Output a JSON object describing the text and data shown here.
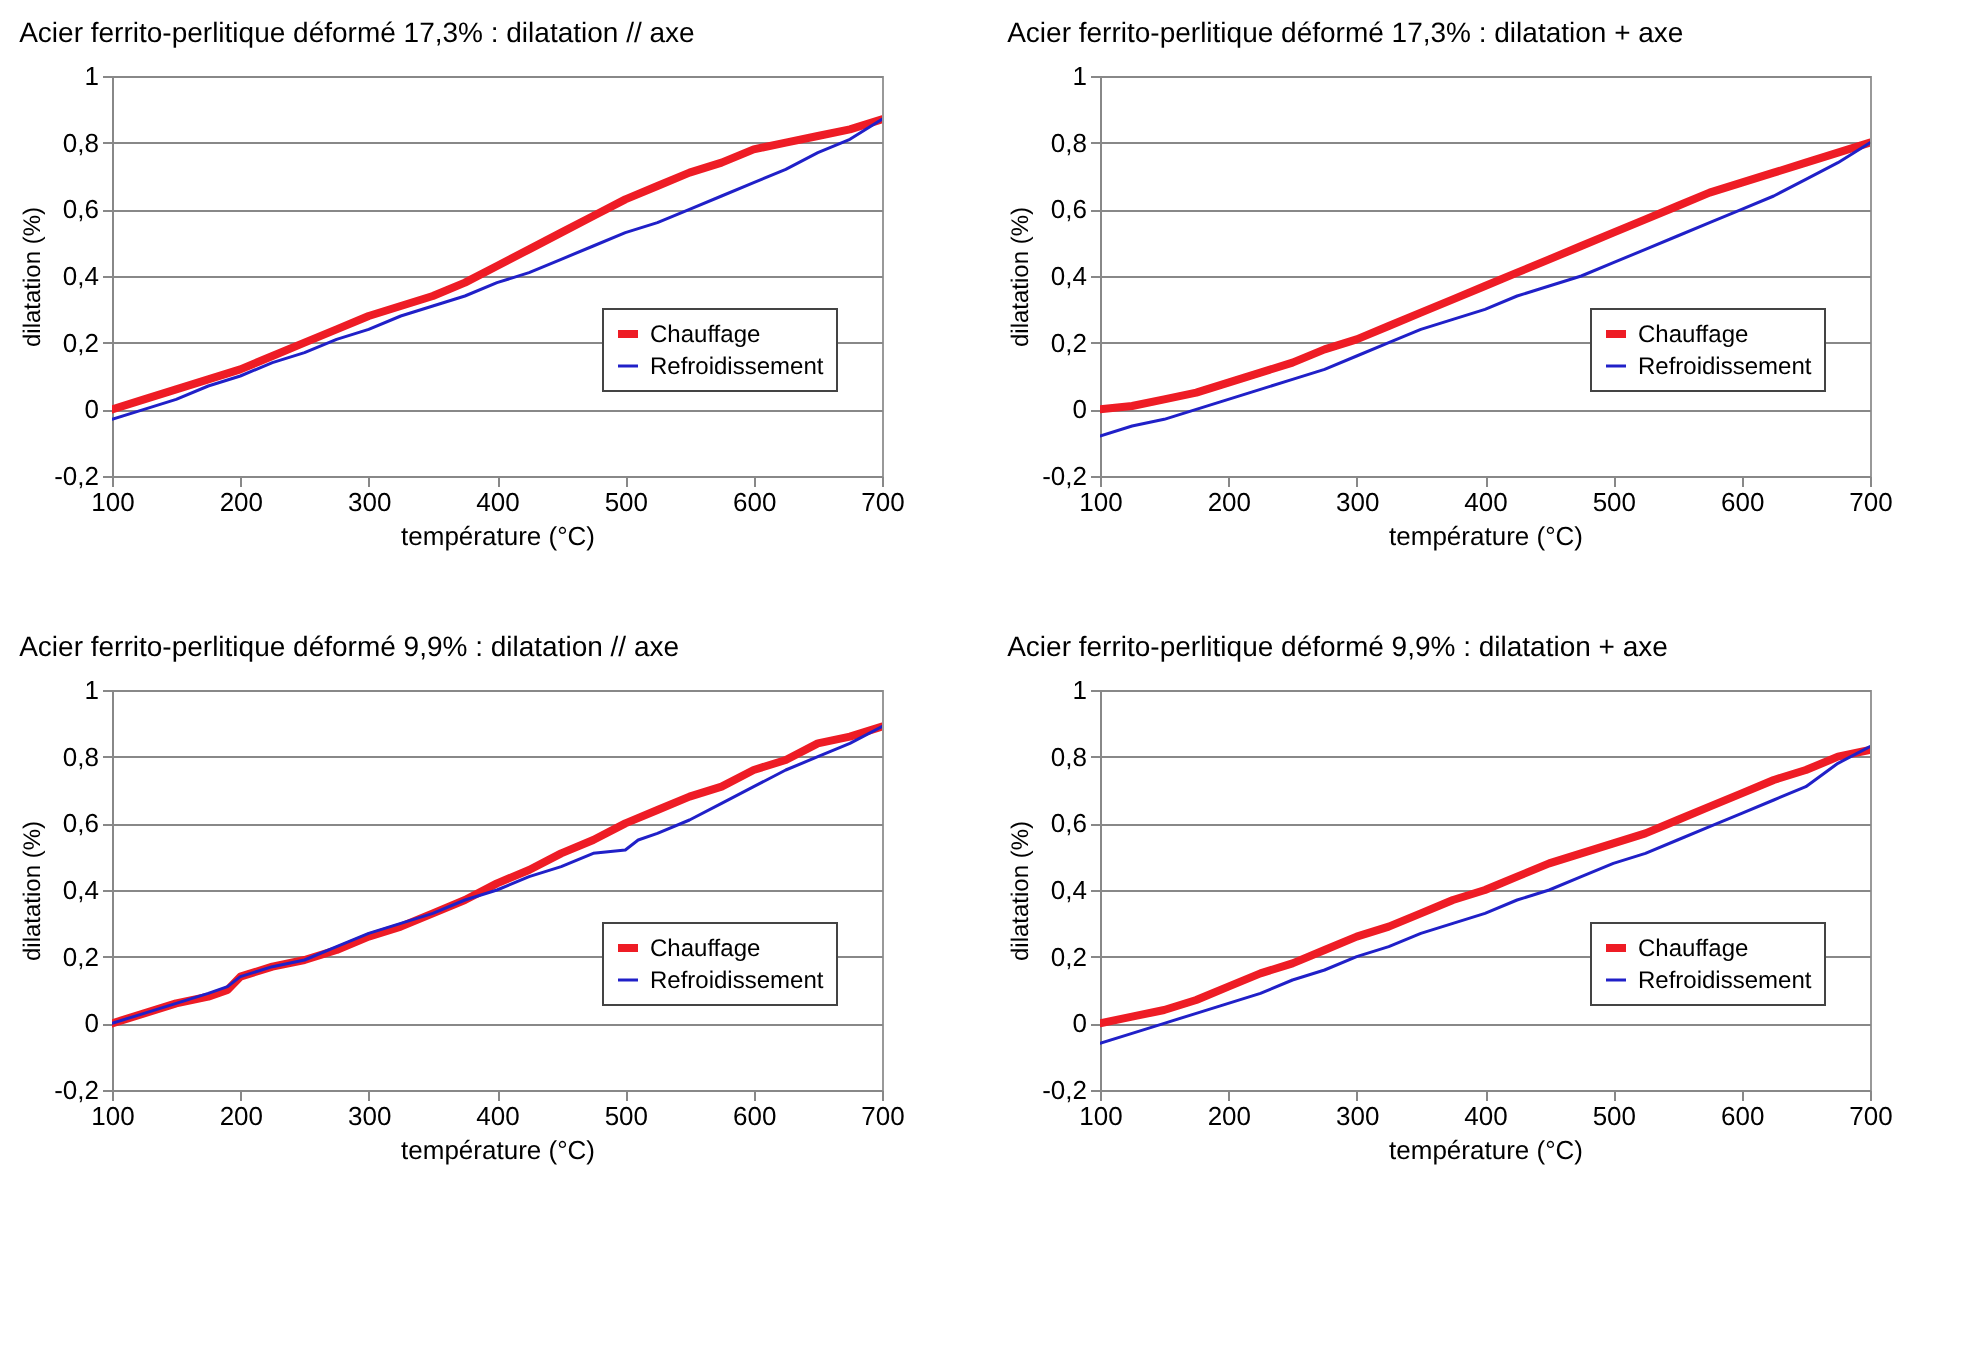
{
  "chart_data": [
    {
      "type": "line",
      "title": "Acier ferrito-perlitique déformé 17,3% : dilatation // axe",
      "xlabel": "température (°C)",
      "ylabel": "dilatation (%)",
      "xlim": [
        100,
        700
      ],
      "xticks": [
        100,
        200,
        300,
        400,
        500,
        600,
        700
      ],
      "ylim": [
        -0.2,
        1
      ],
      "yticks": [
        {
          "value": -0.2,
          "label": "-0,2"
        },
        {
          "value": 0,
          "label": "0"
        },
        {
          "value": 0.2,
          "label": "0,2"
        },
        {
          "value": 0.4,
          "label": "0,4"
        },
        {
          "value": 0.6,
          "label": "0,6"
        },
        {
          "value": 0.8,
          "label": "0,8"
        },
        {
          "value": 1,
          "label": "1"
        }
      ],
      "grid": "y",
      "legend": "right",
      "x": [
        100,
        125,
        150,
        175,
        200,
        225,
        250,
        275,
        300,
        325,
        350,
        375,
        400,
        425,
        450,
        475,
        500,
        525,
        550,
        575,
        600,
        625,
        650,
        675,
        700
      ],
      "series": [
        {
          "name": "Chauffage",
          "color": "#ee1c25",
          "values": [
            0.0,
            0.03,
            0.06,
            0.09,
            0.12,
            0.16,
            0.2,
            0.24,
            0.28,
            0.31,
            0.34,
            0.38,
            0.43,
            0.48,
            0.53,
            0.58,
            0.63,
            0.67,
            0.71,
            0.74,
            0.78,
            0.8,
            0.82,
            0.84,
            0.87
          ]
        },
        {
          "name": "Refroidissement",
          "color": "#2020c8",
          "values": [
            -0.03,
            0.0,
            0.03,
            0.07,
            0.1,
            0.14,
            0.17,
            0.21,
            0.24,
            0.28,
            0.31,
            0.34,
            0.38,
            0.41,
            0.45,
            0.49,
            0.53,
            0.56,
            0.6,
            0.64,
            0.68,
            0.72,
            0.77,
            0.81,
            0.87
          ]
        }
      ]
    },
    {
      "type": "line",
      "title": "Acier ferrito-perlitique déformé 17,3% : dilatation + axe",
      "xlabel": "température (°C)",
      "ylabel": "dilatation (%)",
      "xlim": [
        100,
        700
      ],
      "xticks": [
        100,
        200,
        300,
        400,
        500,
        600,
        700
      ],
      "ylim": [
        -0.2,
        1
      ],
      "yticks": [
        {
          "value": -0.2,
          "label": "-0,2"
        },
        {
          "value": 0,
          "label": "0"
        },
        {
          "value": 0.2,
          "label": "0,2"
        },
        {
          "value": 0.4,
          "label": "0,4"
        },
        {
          "value": 0.6,
          "label": "0,6"
        },
        {
          "value": 0.8,
          "label": "0,8"
        },
        {
          "value": 1,
          "label": "1"
        }
      ],
      "grid": "y",
      "legend": "right",
      "x": [
        100,
        125,
        150,
        175,
        200,
        225,
        250,
        275,
        300,
        325,
        350,
        375,
        400,
        425,
        450,
        475,
        500,
        525,
        550,
        575,
        600,
        625,
        650,
        675,
        700
      ],
      "series": [
        {
          "name": "Chauffage",
          "color": "#ee1c25",
          "values": [
            0.0,
            0.01,
            0.03,
            0.05,
            0.08,
            0.11,
            0.14,
            0.18,
            0.21,
            0.25,
            0.29,
            0.33,
            0.37,
            0.41,
            0.45,
            0.49,
            0.53,
            0.57,
            0.61,
            0.65,
            0.68,
            0.71,
            0.74,
            0.77,
            0.8
          ]
        },
        {
          "name": "Refroidissement",
          "color": "#2020c8",
          "values": [
            -0.08,
            -0.05,
            -0.03,
            0.0,
            0.03,
            0.06,
            0.09,
            0.12,
            0.16,
            0.2,
            0.24,
            0.27,
            0.3,
            0.34,
            0.37,
            0.4,
            0.44,
            0.48,
            0.52,
            0.56,
            0.6,
            0.64,
            0.69,
            0.74,
            0.8
          ]
        }
      ]
    },
    {
      "type": "line",
      "title": "Acier ferrito-perlitique déformé 9,9% : dilatation // axe",
      "xlabel": "température (°C)",
      "ylabel": "dilatation (%)",
      "xlim": [
        100,
        700
      ],
      "xticks": [
        100,
        200,
        300,
        400,
        500,
        600,
        700
      ],
      "ylim": [
        -0.2,
        1
      ],
      "yticks": [
        {
          "value": -0.2,
          "label": "-0,2"
        },
        {
          "value": 0,
          "label": "0"
        },
        {
          "value": 0.2,
          "label": "0,2"
        },
        {
          "value": 0.4,
          "label": "0,4"
        },
        {
          "value": 0.6,
          "label": "0,6"
        },
        {
          "value": 0.8,
          "label": "0,8"
        },
        {
          "value": 1,
          "label": "1"
        }
      ],
      "grid": "y",
      "legend": "right",
      "series": [
        {
          "name": "Chauffage",
          "color": "#ee1c25",
          "x": [
            100,
            125,
            150,
            175,
            190,
            200,
            225,
            250,
            275,
            300,
            325,
            350,
            375,
            400,
            425,
            450,
            475,
            500,
            525,
            550,
            575,
            600,
            625,
            650,
            675,
            700
          ],
          "values": [
            0.0,
            0.03,
            0.06,
            0.08,
            0.1,
            0.14,
            0.17,
            0.19,
            0.22,
            0.26,
            0.29,
            0.33,
            0.37,
            0.42,
            0.46,
            0.51,
            0.55,
            0.6,
            0.64,
            0.68,
            0.71,
            0.76,
            0.79,
            0.84,
            0.86,
            0.89
          ]
        },
        {
          "name": "Refroidissement",
          "color": "#2020c8",
          "x": [
            100,
            125,
            150,
            175,
            190,
            200,
            225,
            250,
            275,
            300,
            325,
            350,
            375,
            400,
            425,
            450,
            475,
            500,
            510,
            525,
            550,
            575,
            600,
            625,
            650,
            675,
            700
          ],
          "values": [
            0.0,
            0.03,
            0.06,
            0.09,
            0.11,
            0.14,
            0.17,
            0.19,
            0.23,
            0.27,
            0.3,
            0.33,
            0.37,
            0.4,
            0.44,
            0.47,
            0.51,
            0.52,
            0.55,
            0.57,
            0.61,
            0.66,
            0.71,
            0.76,
            0.8,
            0.84,
            0.89
          ]
        }
      ]
    },
    {
      "type": "line",
      "title": "Acier ferrito-perlitique déformé 9,9% : dilatation + axe",
      "xlabel": "température (°C)",
      "ylabel": "dilatation (%)",
      "xlim": [
        100,
        700
      ],
      "xticks": [
        100,
        200,
        300,
        400,
        500,
        600,
        700
      ],
      "ylim": [
        -0.2,
        1
      ],
      "yticks": [
        {
          "value": -0.2,
          "label": "-0,2"
        },
        {
          "value": 0,
          "label": "0"
        },
        {
          "value": 0.2,
          "label": "0,2"
        },
        {
          "value": 0.4,
          "label": "0,4"
        },
        {
          "value": 0.6,
          "label": "0,6"
        },
        {
          "value": 0.8,
          "label": "0,8"
        },
        {
          "value": 1,
          "label": "1"
        }
      ],
      "grid": "y",
      "legend": "right",
      "x": [
        100,
        125,
        150,
        175,
        200,
        225,
        250,
        275,
        300,
        325,
        350,
        375,
        400,
        425,
        450,
        475,
        500,
        525,
        550,
        575,
        600,
        625,
        650,
        675,
        700
      ],
      "series": [
        {
          "name": "Chauffage",
          "color": "#ee1c25",
          "values": [
            0.0,
            0.02,
            0.04,
            0.07,
            0.11,
            0.15,
            0.18,
            0.22,
            0.26,
            0.29,
            0.33,
            0.37,
            0.4,
            0.44,
            0.48,
            0.51,
            0.54,
            0.57,
            0.61,
            0.65,
            0.69,
            0.73,
            0.76,
            0.8,
            0.82
          ]
        },
        {
          "name": "Refroidissement",
          "color": "#2020c8",
          "values": [
            -0.06,
            -0.03,
            0.0,
            0.03,
            0.06,
            0.09,
            0.13,
            0.16,
            0.2,
            0.23,
            0.27,
            0.3,
            0.33,
            0.37,
            0.4,
            0.44,
            0.48,
            0.51,
            0.55,
            0.59,
            0.63,
            0.67,
            0.71,
            0.78,
            0.83
          ]
        }
      ]
    }
  ]
}
